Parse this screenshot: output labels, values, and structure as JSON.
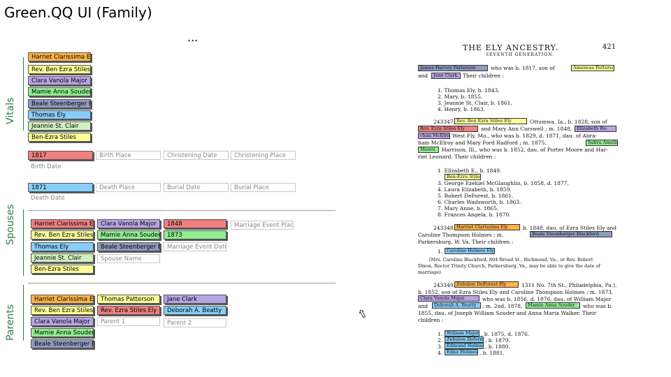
{
  "app": {
    "title": "Green.QQ UI (Family)",
    "ellipsis": "..."
  },
  "sections": {
    "vitals": "Vitals",
    "spouses": "Spouses",
    "parents": "Parents"
  },
  "colors": {
    "red": "#f08080",
    "yellow": "#ffff99",
    "purple": "#b9a4e6",
    "green": "#90ee90",
    "slate": "#8f9bbf",
    "cyan": "#87cefa",
    "pale_green": "#d0f0c0",
    "orange": "#ffb347"
  },
  "vitals": {
    "names": [
      "Harriet Clarissima El",
      "Rev. Ben Ezra Stiles",
      "Clara Vanola Major",
      "Mamie Anna Souder",
      "Beale Steenberger B",
      "Thomas Ely",
      "Jeannie St. Clair",
      "Ben-Ezra Stiles"
    ],
    "birth": {
      "date": "1817",
      "place": "Birth Place",
      "christening_date": "Christening Date",
      "christening_place": "Christening Place",
      "label": "Birth Date"
    },
    "death": {
      "date": "1871",
      "place": "Death Place",
      "burial_date": "Burial Date",
      "burial_place": "Burial Place",
      "label": "Death Date"
    }
  },
  "spouses": {
    "left": [
      "Harriet Clarissima El",
      "Rev. Ben Ezra Stiles",
      "Thomas Ely",
      "Jeannie St. Clair",
      "Ben-Ezra Stiles"
    ],
    "names": [
      "Clara Vanola Major",
      "Mamie Anna Souder",
      "Beale Steenberger B"
    ],
    "spouse_name": "Spouse Name",
    "dates": [
      "1848",
      "1873"
    ],
    "marriage_event_date": "Marriage Event Date",
    "marriage_event_place": "Marriage Event Place"
  },
  "parents": {
    "left": [
      "Harriet Clarissima El",
      "Rev. Ben Ezra Stiles",
      "Clara Vanola Major",
      "Mamie Anna Souder",
      "Beale Steenberger B"
    ],
    "parent1": [
      "Thomas Patterson",
      "Rev. Ezra Stiles Ely",
      "Parent 1"
    ],
    "parent2": [
      "Jane Clark",
      "Deborah A. Beatty",
      "Parent 2"
    ]
  },
  "document": {
    "header": "THE ELY ANCESTRY.",
    "subheader": "SEVENTH GENERATION.",
    "page": "421",
    "highlights": {
      "jhp": "James Harvey Patterson",
      "ap": "Ameneas Patterson",
      "jc": "Jane Clark",
      "rbes": "Rev. Ben Ezra Stiles Ely",
      "resl": "Rev. Ezra Stiles Ely",
      "elizabeth": "Elizabeth Bu-",
      "mcelroy": "chan McElroy",
      "sabra": "Sabra Amelia",
      "moore": "Moore",
      "bes": "Ben-Ezra Stiles",
      "hce": "Harriet Clarissima Ely",
      "bsb": "Beale Steenberger Blackford",
      "chb": "Caroline Holmes Ely",
      "zde": "Zebulon DeForest Ely",
      "cvm": "Clara Vanola Major",
      "dab": "Deborah A. Beatty",
      "mas": "Mamie Anna Souder",
      "william": "William Major",
      "zebulon": "Zebulon Deforest",
      "edmund": "Edmund Holmes",
      "edna": "Edna Holmes"
    },
    "text": {
      "l1": "who was b. 1817, son of",
      "l2": "and",
      "l2b": "Their children :",
      "c1": "1.  Thomas Ely, b. 1843.",
      "c2": "2.  Mary, b. 1855.",
      "c3": "3.  Jeannie St. Clair, b. 1861.",
      "c4": "4.  Henry, b. 1863.",
      "num1": "243347.",
      "p2a": "Ottumwa, Ia., b. 1828, son of",
      "p2b": "and Mary Ann Carswell ; m. 1848,",
      "p2c": "West Fly, Mo., who was b. 1829, d. 1871, dau. of Abra-",
      "p2d": "ham McElroy and Mary Ford Radford ; m. 1875,",
      "p2e": "Harrison, Ill., who was b. 1852, dau. of Porter Moore and Har-",
      "p2f": "riet Leonard.  Their children :",
      "k1": "1.  Elizabeth E., b. 1849.",
      "k2": "2.  Ben-Ezra Stiles, b. 1856.",
      "k3": "3.  George Ezekiel McGlaughlin, b. 1858, d. 1877.",
      "k4": "4.  Laura Elizabeth, b. 1859.",
      "k5": "5.  Robert DeForest, b. 1861.",
      "k6": "6.  Charles Wadsworth, b. 1863.",
      "k7": "7.  Mary Anne, b. 1865.",
      "k8": "8.  Frances Angela, b. 1870.",
      "num2": "243348.",
      "p3a": "b. 1848, dau. of Ezra Stiles Ely and",
      "p3b": "Caroline Thompson Holmes ; m.",
      "p3c": "Parkersburg, W. Va.  Their children :",
      "p3d": "1.",
      "p3e": "(Mrs. Caroline Blackford, 804 Broad St., Richmond, Va., or Rev. Robert",
      "p3f": "Dixon, Rector Trinity Church, Parkersburg, Va., may be able to give the date of",
      "p3g": "marriage).",
      "num3": "243349.",
      "p4a": "1311 No. 7th St., Philadelphia, Pa.),",
      "p4b": "b. 1852, son of Ezra Stiles Ely and Caroline Thompson Holmes ; m. 1873,",
      "p4c": "who was b. 1856, d. 1876, dau. of William Major",
      "p4d": "and",
      "p4e": "; m. 2nd, 1878,",
      "p4f": "who was b.",
      "p4g": "1855, dau. of Joseph William Souder and Anna Maria Walker.  Their",
      "p4h": "children :",
      "g1": "1.",
      "g1b": ", b. 1875, d. 1876.",
      "g2": "2.",
      "g2b": ", b. 1879.",
      "g3": "3.",
      "g3b": ", b. 1880.",
      "g4": "4.",
      "g4b": ", b. 1881."
    }
  }
}
